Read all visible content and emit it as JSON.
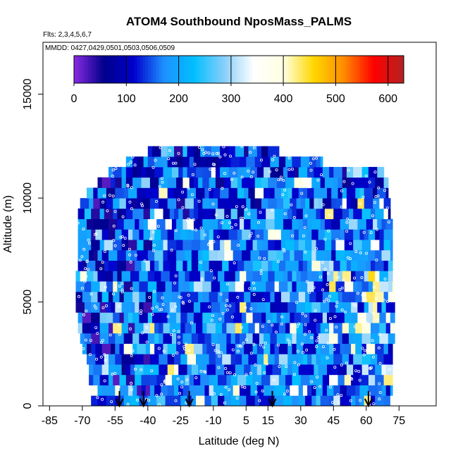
{
  "chart_data": {
    "type": "heatmap",
    "title": "ATOM4 Southbound NposMass_PALMS",
    "flights_text": "Flts: 2,3,4,5,6,7",
    "dates_text": "MMDD: 0427,0429,0501,0503,0506,0509",
    "xlabel": "Latitude (deg N)",
    "ylabel": "Altitude (m)",
    "xlim": [
      -88,
      92
    ],
    "ylim": [
      0,
      17500
    ],
    "x_ticks": [
      -85,
      -70,
      -55,
      -40,
      -25,
      -10,
      5,
      15,
      30,
      45,
      60,
      75
    ],
    "x_tick_labels": [
      "-85",
      "-70",
      "-55",
      "-40",
      "-25",
      "-10",
      "5",
      "15",
      "30",
      "45",
      "60",
      "75"
    ],
    "y_ticks": [
      0,
      5000,
      10000,
      15000
    ],
    "y_tick_labels": [
      "0",
      "5000",
      "10000",
      "15000"
    ],
    "colorbar": {
      "min": 0,
      "max": 630,
      "ticks": [
        0,
        100,
        200,
        300,
        400,
        500,
        600
      ],
      "tick_labels": [
        "0",
        "100",
        "200",
        "300",
        "400",
        "500",
        "600"
      ],
      "colors": [
        "#8a2be2",
        "#00008b",
        "#0000cd",
        "#1e90ff",
        "#00bfff",
        "#87cefa",
        "#ffffff",
        "#ffffe0",
        "#ffd700",
        "#ff8c00",
        "#ff0000",
        "#b22222"
      ]
    },
    "grid": false,
    "arrow_latitudes": [
      -53,
      -42,
      -21,
      17,
      61
    ],
    "altitude_bins": [
      {
        "alt": 250,
        "lat_start": -66,
        "lat_end": 72
      },
      {
        "alt": 750,
        "lat_start": -66,
        "lat_end": 72
      },
      {
        "alt": 1250,
        "lat_start": -67,
        "lat_end": 72
      },
      {
        "alt": 1750,
        "lat_start": -67,
        "lat_end": 72
      },
      {
        "alt": 2250,
        "lat_start": -68,
        "lat_end": 72
      },
      {
        "alt": 2750,
        "lat_start": -70,
        "lat_end": 72
      },
      {
        "alt": 3250,
        "lat_start": -71,
        "lat_end": 73
      },
      {
        "alt": 3750,
        "lat_start": -72,
        "lat_end": 73
      },
      {
        "alt": 4250,
        "lat_start": -72,
        "lat_end": 73
      },
      {
        "alt": 4750,
        "lat_start": -73,
        "lat_end": 73
      },
      {
        "alt": 5250,
        "lat_start": -73,
        "lat_end": 73
      },
      {
        "alt": 5750,
        "lat_start": -73,
        "lat_end": 73
      },
      {
        "alt": 6250,
        "lat_start": -73,
        "lat_end": 72
      },
      {
        "alt": 6750,
        "lat_start": -72,
        "lat_end": 72
      },
      {
        "alt": 7250,
        "lat_start": -72,
        "lat_end": 72
      },
      {
        "alt": 7750,
        "lat_start": -72,
        "lat_end": 72
      },
      {
        "alt": 8250,
        "lat_start": -72,
        "lat_end": 72
      },
      {
        "alt": 8750,
        "lat_start": -72,
        "lat_end": 72
      },
      {
        "alt": 9250,
        "lat_start": -72,
        "lat_end": 71
      },
      {
        "alt": 9750,
        "lat_start": -71,
        "lat_end": 71
      },
      {
        "alt": 10250,
        "lat_start": -68,
        "lat_end": 70
      },
      {
        "alt": 10750,
        "lat_start": -63,
        "lat_end": 70
      },
      {
        "alt": 11250,
        "lat_start": -58,
        "lat_end": 68
      },
      {
        "alt": 11750,
        "lat_start": -50,
        "lat_end": 40
      },
      {
        "alt": 12250,
        "lat_start": -40,
        "lat_end": 20
      }
    ]
  }
}
